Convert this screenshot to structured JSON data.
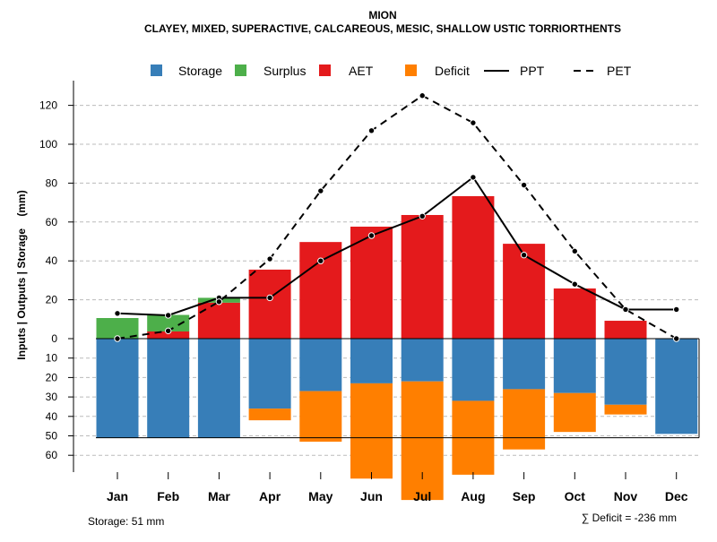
{
  "chart_data": {
    "type": "bar",
    "title": "MION",
    "subtitle": "CLAYEY, MIXED, SUPERACTIVE, CALCAREOUS, MESIC, SHALLOW USTIC TORRIORTHENTS",
    "ylabel": "Inputs | Outputs | Storage    (mm)",
    "ylim": [
      -83,
      130
    ],
    "y_ticks_positive": [
      0,
      20,
      40,
      60,
      80,
      100,
      120
    ],
    "y_ticks_negative": [
      10,
      20,
      30,
      40,
      50,
      60
    ],
    "grid": true,
    "legend_position": "top",
    "categories": [
      "Jan",
      "Feb",
      "Mar",
      "Apr",
      "May",
      "Jun",
      "Jul",
      "Aug",
      "Sep",
      "Oct",
      "Nov",
      "Dec"
    ],
    "series": [
      {
        "name": "Storage",
        "color": "#377EB8",
        "values": [
          51,
          51,
          51,
          36,
          27,
          23,
          22,
          32,
          26,
          28,
          34,
          49
        ]
      },
      {
        "name": "Surplus",
        "color": "#4DAF4A",
        "values": [
          10.6,
          8.5,
          2.5,
          0,
          0,
          0,
          0,
          0,
          0,
          0,
          0,
          0
        ]
      },
      {
        "name": "AET",
        "color": "#E41A1C",
        "values": [
          0,
          3.7,
          18.5,
          35.5,
          49.7,
          57.6,
          63.6,
          73.3,
          48.8,
          25.8,
          9.2,
          0
        ]
      },
      {
        "name": "Deficit",
        "color": "#FF7F00",
        "values": [
          0,
          0,
          0,
          6,
          26,
          49,
          61,
          38,
          31,
          20,
          5,
          0
        ]
      },
      {
        "name": "PPT",
        "type": "line",
        "style": "solid",
        "values": [
          13,
          12,
          21,
          21,
          40,
          53,
          63,
          83,
          43,
          28,
          15,
          15
        ]
      },
      {
        "name": "PET",
        "type": "line",
        "style": "dashed",
        "values": [
          0,
          4,
          19,
          41,
          76,
          107,
          125,
          111,
          79,
          45,
          15,
          0
        ]
      }
    ],
    "storage_capacity": 51,
    "footer_left": "Storage: 51 mm",
    "footer_right": "∑ Deficit = -236 mm"
  }
}
